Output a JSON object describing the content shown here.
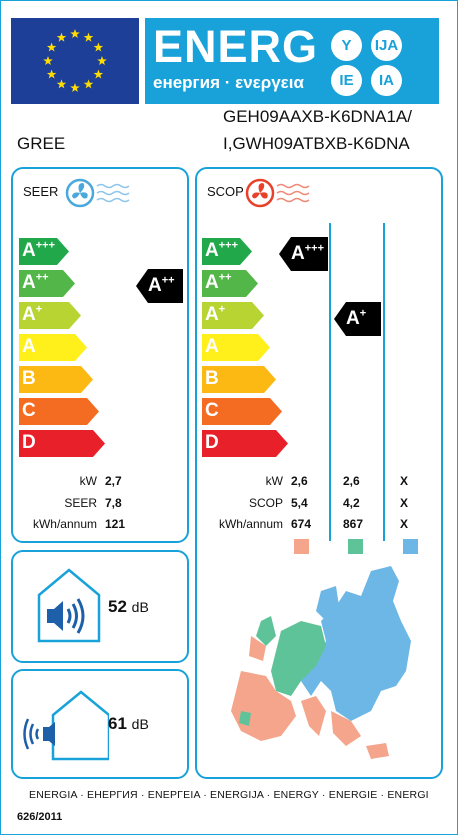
{
  "header": {
    "energy_word": "ENERG",
    "energy_subtitle": "енергия · ενεργεια",
    "languages": [
      "Y",
      "IJA",
      "IE",
      "IA"
    ],
    "supplier": "GREE",
    "model_line1": "GEH09AAXB-K6DNA1A/",
    "model_line2": "I,GWH09ATBXB-K6DNA"
  },
  "colors": {
    "brand_blue": "#19a2d9",
    "eu_blue": "#1d3f97",
    "eu_star": "#ffdd00",
    "class_colors": [
      "#20a84a",
      "#52b648",
      "#b7d433",
      "#ffef1b",
      "#fdb913",
      "#f36c21",
      "#e8202a"
    ],
    "climate_warmer": "#f4a58b",
    "climate_average": "#5fc39a",
    "climate_colder": "#6cb7e6"
  },
  "classes": [
    "A+++",
    "A++",
    "A+",
    "A",
    "B",
    "C",
    "D"
  ],
  "seer": {
    "title": "SEER",
    "icon": "fan-cooling-icon",
    "rating": "A++",
    "labels": [
      "kW",
      "SEER",
      "kWh/annum"
    ],
    "values": [
      "2,7",
      "7,8",
      "121"
    ]
  },
  "scop": {
    "title": "SCOP",
    "icon": "fan-heating-icon",
    "rating_average": "A+++",
    "rating_colder": "A+",
    "labels": [
      "kW",
      "SCOP",
      "kWh/annum"
    ],
    "columns": [
      [
        "2,6",
        "5,4",
        "674"
      ],
      [
        "2,6",
        "4,2",
        "867"
      ],
      [
        "X",
        "X",
        "X"
      ]
    ]
  },
  "noise": {
    "indoor_value": "52",
    "outdoor_value": "61",
    "unit": "dB"
  },
  "footer": {
    "energia_line": "ENERGIA · ЕНЕРГИЯ · ΕΝΕΡΓΕΙΑ · ENERGIJA · ENERGY · ENERGIE · ENERGI",
    "regulation": "626/2011"
  }
}
